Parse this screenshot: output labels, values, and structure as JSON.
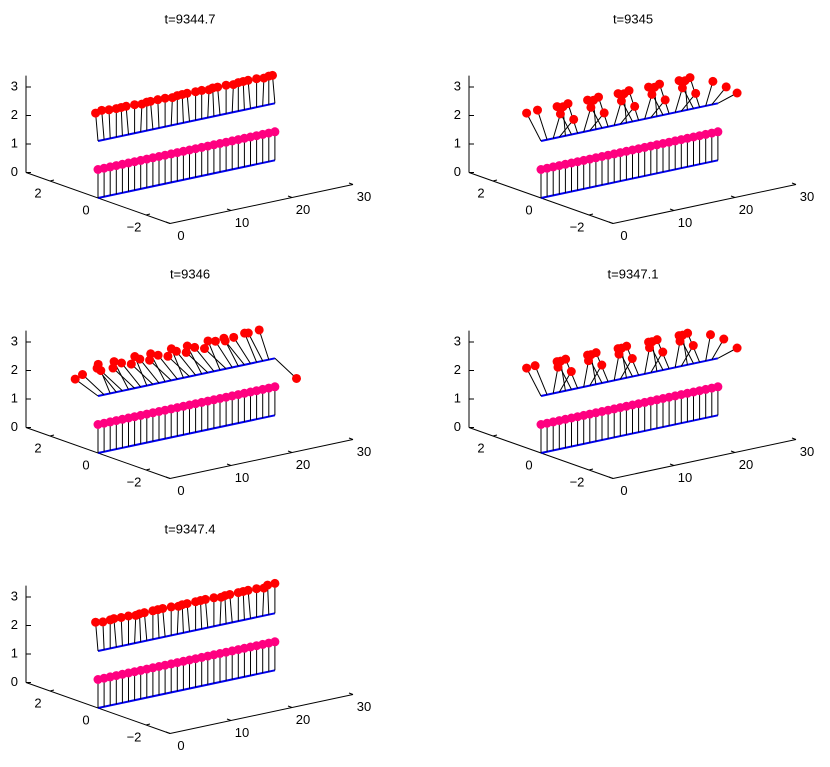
{
  "chart_data": [
    {
      "type": "stem3d",
      "title": "t=9344.7",
      "xlim": [
        0,
        30
      ],
      "ylim": [
        -3,
        3
      ],
      "zlim": [
        0,
        3.4
      ],
      "xticks": [
        0,
        10,
        20,
        30
      ],
      "yticks": [
        {
          "value": -2,
          "label": "−2"
        },
        0,
        2
      ],
      "zticks": [
        0,
        1,
        2,
        3
      ],
      "x": [
        0,
        1,
        2,
        3,
        4,
        5,
        6,
        7,
        8,
        9,
        10,
        11,
        12,
        13,
        14,
        15,
        16,
        17,
        18,
        19,
        20,
        21,
        22,
        23,
        24,
        25,
        26,
        27,
        28,
        29
      ],
      "series": [
        {
          "color": "#ff0000",
          "base": 2,
          "y": [
            0.1,
            0.1,
            0.05,
            0,
            0.05,
            0.1,
            0,
            -0.05,
            0,
            0.1,
            0.05,
            0,
            -0.05,
            0,
            0.05,
            0.1,
            0,
            0,
            -0.05,
            0.05,
            0.1,
            0,
            -0.05,
            0,
            0.05,
            0.1,
            0,
            -0.05,
            0,
            0.1
          ],
          "z": [
            2.95,
            3,
            2.99,
            3,
            2.98,
            2.96,
            3,
            2.99,
            3,
            2.95,
            2.98,
            3,
            2.99,
            3,
            2.98,
            2.96,
            3,
            3,
            2.99,
            2.98,
            2.95,
            3,
            2.99,
            3,
            2.98,
            2.96,
            3,
            2.99,
            3,
            2.95
          ]
        },
        {
          "color": "#ff0080",
          "base": 0,
          "y": [
            0,
            0,
            0,
            0,
            0,
            0,
            0,
            0,
            0,
            0,
            0,
            0,
            0,
            0,
            0,
            0,
            0,
            0,
            0,
            0,
            0,
            0,
            0,
            0,
            0,
            0,
            0,
            0,
            0,
            0
          ],
          "z": [
            1,
            1,
            1,
            1,
            1,
            1,
            1,
            1,
            1,
            1,
            1,
            1,
            1,
            1,
            1,
            1,
            1,
            1,
            1,
            1,
            1,
            1,
            1,
            1,
            1,
            1,
            1,
            1,
            1,
            1
          ]
        }
      ]
    },
    {
      "type": "stem3d",
      "title": "t=9345",
      "xlim": [
        0,
        30
      ],
      "ylim": [
        -3,
        3
      ],
      "zlim": [
        0,
        3.4
      ],
      "xticks": [
        0,
        10,
        20,
        30
      ],
      "yticks": [
        {
          "value": -2,
          "label": "−2"
        },
        0,
        2
      ],
      "zticks": [
        0,
        1,
        2,
        3
      ],
      "x": [
        0,
        1,
        2,
        3,
        4,
        5,
        6,
        7,
        8,
        9,
        10,
        11,
        12,
        13,
        14,
        15,
        16,
        17,
        18,
        19,
        20,
        21,
        22,
        23,
        24,
        25,
        26,
        27,
        28,
        29
      ],
      "series": [
        {
          "color": "#ff0000",
          "base": 2,
          "y": [
            0.6,
            0.4,
            -0.3,
            -0.6,
            0.1,
            0.6,
            0.4,
            -0.3,
            -0.6,
            0.1,
            0.6,
            0.4,
            -0.3,
            -0.6,
            0.1,
            0.6,
            0.4,
            -0.3,
            -0.6,
            0.1,
            0.6,
            0.4,
            -0.3,
            -0.6,
            0.1,
            0.6,
            0.4,
            -0.3,
            -0.6,
            -0.8
          ],
          "z": [
            2.8,
            2.92,
            2.95,
            2.8,
            2.99,
            2.8,
            2.92,
            2.95,
            2.8,
            2.99,
            2.8,
            2.92,
            2.95,
            2.8,
            2.99,
            2.8,
            2.92,
            2.95,
            2.8,
            2.99,
            2.8,
            2.92,
            2.95,
            2.8,
            2.99,
            2.8,
            2.92,
            2.95,
            2.8,
            2.6
          ]
        },
        {
          "color": "#ff0080",
          "base": 0,
          "y": [
            0,
            0,
            0,
            0,
            0,
            0,
            0,
            0,
            0,
            0,
            0,
            0,
            0,
            0,
            0,
            0,
            0,
            0,
            0,
            0,
            0,
            0,
            0,
            0,
            0,
            0,
            0,
            0,
            0,
            0
          ],
          "z": [
            1,
            1,
            1,
            1,
            1,
            1,
            1,
            1,
            1,
            1,
            1,
            1,
            1,
            1,
            1,
            1,
            1,
            1,
            1,
            1,
            1,
            1,
            1,
            1,
            1,
            1,
            1,
            1,
            1,
            1
          ]
        }
      ]
    },
    {
      "type": "stem3d",
      "title": "t=9346",
      "xlim": [
        0,
        30
      ],
      "ylim": [
        -3,
        3
      ],
      "zlim": [
        0,
        3.4
      ],
      "xticks": [
        0,
        10,
        20,
        30
      ],
      "yticks": [
        {
          "value": -2,
          "label": "−2"
        },
        0,
        2
      ],
      "zticks": [
        0,
        1,
        2,
        3
      ],
      "x": [
        0,
        1,
        2,
        3,
        4,
        5,
        6,
        7,
        8,
        9,
        10,
        11,
        12,
        13,
        14,
        15,
        16,
        17,
        18,
        19,
        20,
        21,
        22,
        23,
        24,
        25,
        26,
        27,
        28,
        29
      ],
      "series": [
        {
          "color": "#ff0000",
          "base": 2,
          "y": [
            0.95,
            0.9,
            0.5,
            0.8,
            0.9,
            0.6,
            0.9,
            0.8,
            0.5,
            0.9,
            0.8,
            0.6,
            0.9,
            0.8,
            0.5,
            0.9,
            0.8,
            0.6,
            0.9,
            0.8,
            0.5,
            0.9,
            0.7,
            0.6,
            0.8,
            0.7,
            0.5,
            0.6,
            0.4,
            -0.9
          ],
          "z": [
            2.31,
            2.44,
            2.87,
            2.6,
            2.44,
            2.8,
            2.44,
            2.6,
            2.87,
            2.44,
            2.6,
            2.8,
            2.44,
            2.6,
            2.87,
            2.44,
            2.6,
            2.8,
            2.44,
            2.6,
            2.87,
            2.44,
            2.71,
            2.8,
            2.6,
            2.71,
            2.87,
            2.8,
            2.92,
            1.56
          ]
        },
        {
          "color": "#ff0080",
          "base": 0,
          "y": [
            0,
            0,
            0,
            0,
            0,
            0,
            0,
            0,
            0,
            0,
            0,
            0,
            0,
            0,
            0,
            0,
            0,
            0,
            0,
            0,
            0,
            0,
            0,
            0,
            0,
            0,
            0,
            0,
            0,
            0
          ],
          "z": [
            1,
            1,
            1,
            1,
            1,
            1,
            1,
            1,
            1,
            1,
            1,
            1,
            1,
            1,
            1,
            1,
            1,
            1,
            1,
            1,
            1,
            1,
            1,
            1,
            1,
            1,
            1,
            1,
            1,
            1
          ]
        }
      ]
    },
    {
      "type": "stem3d",
      "title": "t=9347.1",
      "xlim": [
        0,
        30
      ],
      "ylim": [
        -3,
        3
      ],
      "zlim": [
        0,
        3.4
      ],
      "xticks": [
        0,
        10,
        20,
        30
      ],
      "yticks": [
        {
          "value": -2,
          "label": "−2"
        },
        0,
        2
      ],
      "zticks": [
        0,
        1,
        2,
        3
      ],
      "x": [
        0,
        1,
        2,
        3,
        4,
        5,
        6,
        7,
        8,
        9,
        10,
        11,
        12,
        13,
        14,
        15,
        16,
        17,
        18,
        19,
        20,
        21,
        22,
        23,
        24,
        25,
        26,
        27,
        28,
        29
      ],
      "series": [
        {
          "color": "#ff0000",
          "base": 2,
          "y": [
            0.6,
            0.5,
            -0.2,
            -0.5,
            0.2,
            0.6,
            0.5,
            -0.2,
            -0.5,
            0.2,
            0.6,
            0.5,
            -0.2,
            -0.5,
            0.2,
            0.6,
            0.5,
            -0.2,
            -0.5,
            0.2,
            0.6,
            0.5,
            -0.2,
            -0.5,
            0.2,
            0.6,
            0.5,
            -0.2,
            -0.5,
            -0.8
          ],
          "z": [
            2.8,
            2.87,
            2.98,
            2.87,
            2.98,
            2.8,
            2.87,
            2.98,
            2.87,
            2.98,
            2.8,
            2.87,
            2.98,
            2.87,
            2.98,
            2.8,
            2.87,
            2.98,
            2.87,
            2.98,
            2.8,
            2.87,
            2.98,
            2.87,
            2.98,
            2.8,
            2.87,
            2.98,
            2.87,
            2.6
          ]
        },
        {
          "color": "#ff0080",
          "base": 0,
          "y": [
            0,
            0,
            0,
            0,
            0,
            0,
            0,
            0,
            0,
            0,
            0,
            0,
            0,
            0,
            0,
            0,
            0,
            0,
            0,
            0,
            0,
            0,
            0,
            0,
            0,
            0,
            0,
            0,
            0,
            0
          ],
          "z": [
            1,
            1,
            1,
            1,
            1,
            1,
            1,
            1,
            1,
            1,
            1,
            1,
            1,
            1,
            1,
            1,
            1,
            1,
            1,
            1,
            1,
            1,
            1,
            1,
            1,
            1,
            1,
            1,
            1,
            1
          ]
        }
      ]
    },
    {
      "type": "stem3d",
      "title": "t=9347.4",
      "xlim": [
        0,
        30
      ],
      "ylim": [
        -3,
        3
      ],
      "zlim": [
        0,
        3.4
      ],
      "xticks": [
        0,
        10,
        20,
        30
      ],
      "yticks": [
        {
          "value": -2,
          "label": "−2"
        },
        0,
        2
      ],
      "zticks": [
        0,
        1,
        2,
        3
      ],
      "x": [
        0,
        1,
        2,
        3,
        4,
        5,
        6,
        7,
        8,
        9,
        10,
        11,
        12,
        13,
        14,
        15,
        16,
        17,
        18,
        19,
        20,
        21,
        22,
        23,
        24,
        25,
        26,
        27,
        28,
        29
      ],
      "series": [
        {
          "color": "#ff0000",
          "base": 2,
          "y": [
            0.1,
            0.05,
            0,
            0.1,
            0.05,
            0,
            -0.05,
            0.05,
            0.1,
            0,
            0.05,
            0.1,
            0,
            -0.05,
            0.05,
            0.1,
            0,
            0.05,
            0.1,
            0,
            -0.05,
            0.05,
            0.1,
            0,
            0.05,
            0.1,
            0,
            -0.05,
            0.05,
            0
          ],
          "z": [
            2.98,
            2.96,
            3,
            2.97,
            2.98,
            3,
            2.99,
            2.97,
            2.95,
            3,
            2.98,
            2.96,
            3,
            2.99,
            2.97,
            2.95,
            3,
            2.98,
            2.96,
            3,
            2.99,
            2.97,
            2.95,
            3,
            2.98,
            2.96,
            3,
            2.99,
            3.02,
            3.05
          ]
        },
        {
          "color": "#ff0080",
          "base": 0,
          "y": [
            0,
            0,
            0,
            0,
            0,
            0,
            0,
            0,
            0,
            0,
            0,
            0,
            0,
            0,
            0,
            0,
            0,
            0,
            0,
            0,
            0,
            0,
            0,
            0,
            0,
            0,
            0,
            0,
            0,
            0
          ],
          "z": [
            1,
            1,
            1,
            1,
            1,
            1,
            1,
            1,
            1,
            1,
            1,
            1,
            1,
            1,
            1,
            1,
            1,
            1,
            1,
            1,
            1,
            1,
            1,
            1,
            1,
            1,
            1,
            1,
            1,
            1
          ]
        }
      ]
    }
  ]
}
